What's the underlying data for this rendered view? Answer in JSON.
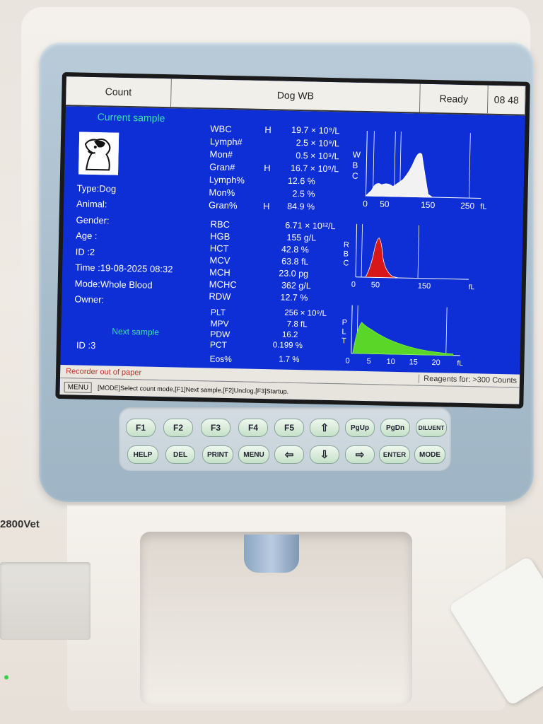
{
  "device": {
    "model": "2800Vet"
  },
  "topbar": {
    "mode": "Count",
    "title": "Dog WB",
    "status": "Ready",
    "time": "08 48"
  },
  "patient": {
    "current_label": "Current sample",
    "type": "Type:Dog",
    "animal": "Animal:",
    "gender": "Gender:",
    "age": "Age  :",
    "id": "ID     :2",
    "time": "Time :19-08-2025 08:32",
    "mode": "Mode:Whole Blood",
    "owner": "Owner:",
    "next_label": "Next sample",
    "next_id": "ID     :3"
  },
  "wbc_params": [
    {
      "name": "WBC",
      "flag": "H",
      "value": "19.7 × 10⁹/L"
    },
    {
      "name": "Lymph#",
      "flag": "",
      "value": "2.5 × 10⁹/L"
    },
    {
      "name": "Mon#",
      "flag": "",
      "value": "0.5 × 10⁹/L"
    },
    {
      "name": "Gran#",
      "flag": "H",
      "value": "16.7 × 10⁹/L"
    },
    {
      "name": "Lymph%",
      "flag": "",
      "value": "12.6 %"
    },
    {
      "name": "Mon%",
      "flag": "",
      "value": "2.5 %"
    },
    {
      "name": "Gran%",
      "flag": "H",
      "value": "84.9 %"
    }
  ],
  "rbc_params": [
    {
      "name": "RBC",
      "value": "6.71 × 10¹²/L"
    },
    {
      "name": "HGB",
      "value": "155 g/L"
    },
    {
      "name": "HCT",
      "value": "42.8 %"
    },
    {
      "name": "MCV",
      "value": "63.8 fL"
    },
    {
      "name": "MCH",
      "value": "23.0 pg"
    },
    {
      "name": "MCHC",
      "value": "362 g/L"
    },
    {
      "name": "RDW",
      "value": "12.7 %"
    }
  ],
  "plt_params": [
    {
      "name": "PLT",
      "value": "256 × 10⁹/L"
    },
    {
      "name": "MPV",
      "value": "7.8 fL"
    },
    {
      "name": "PDW",
      "value": "16.2"
    },
    {
      "name": "PCT",
      "value": "0.199 %"
    },
    {
      "name": "Eos%",
      "value": "1.7 %"
    }
  ],
  "histograms": {
    "wbc": {
      "label_letters": [
        "W",
        "B",
        "C"
      ],
      "ticks": [
        "0",
        "50",
        "150",
        "250"
      ],
      "unit": "fL"
    },
    "rbc": {
      "label_letters": [
        "R",
        "B",
        "C"
      ],
      "ticks": [
        "0",
        "50",
        "150"
      ],
      "unit": "fL",
      "fill": "#d81818"
    },
    "plt": {
      "label_letters": [
        "P",
        "L",
        "T"
      ],
      "ticks": [
        "0",
        "5",
        "10",
        "15",
        "20"
      ],
      "unit": "fL",
      "fill": "#59d628"
    }
  },
  "footer": {
    "message": "Recorder out of paper",
    "reagents": "Reagents for: >300 Counts",
    "menu": "MENU",
    "hint": "[MODE]Select count mode,[F1]Next sample,[F2]Unclog,[F3]Startup."
  },
  "keys": {
    "row1": [
      "F1",
      "F2",
      "F3",
      "F4",
      "F5",
      "⇧",
      "PgUp",
      "PgDn",
      "DILUENT"
    ],
    "row2": [
      "HELP",
      "DEL",
      "PRINT",
      "MENU",
      "⇦",
      "⇩",
      "⇨",
      "ENTER",
      "MODE"
    ]
  }
}
